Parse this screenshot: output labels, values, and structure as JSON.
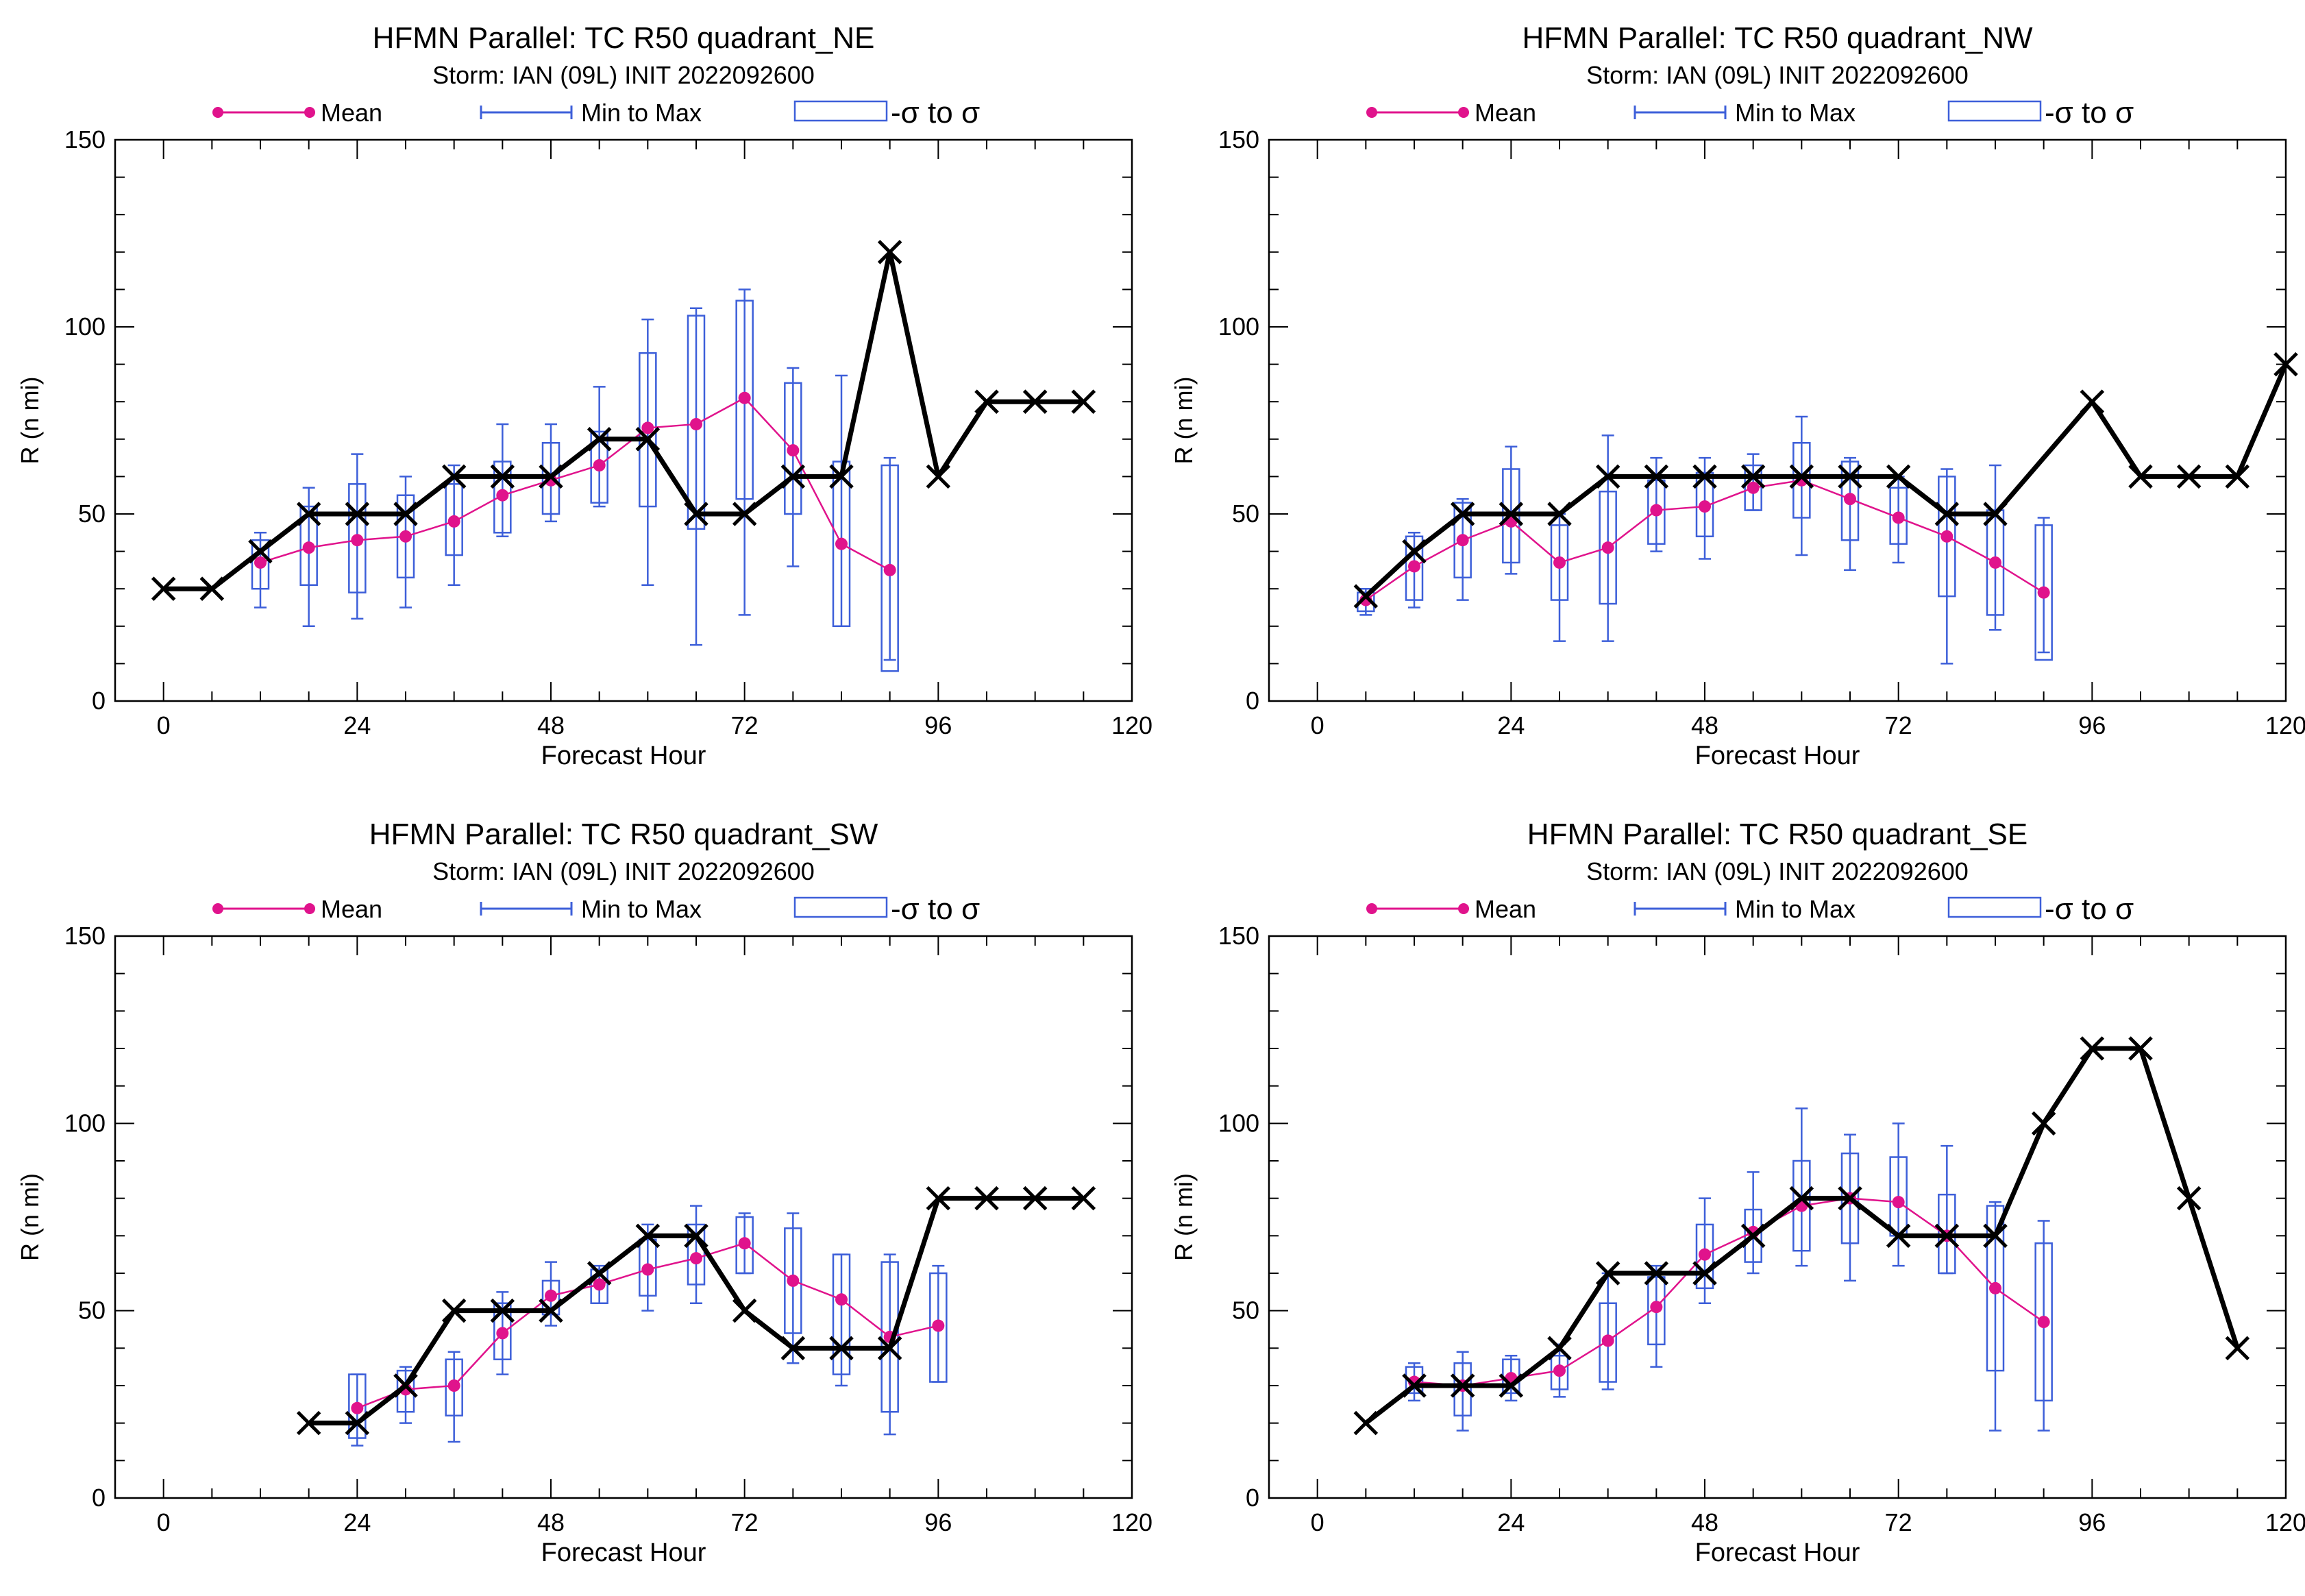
{
  "legend": {
    "mean": "Mean",
    "minmax": "Min to Max",
    "sigma": "-σ to σ"
  },
  "colors": {
    "mean": "#e0138c",
    "box": "#3d5fd9",
    "obs": "#000000"
  },
  "chart_data": [
    {
      "type": "line",
      "title": "HFMN Parallel: TC  R50 quadrant_NE",
      "subtitle": "Storm: IAN (09L) INIT 2022092600",
      "xlabel": "Forecast Hour",
      "ylabel": "R (n mi)",
      "xlim": [
        -6,
        120
      ],
      "ylim": [
        0,
        150
      ],
      "xticks": [
        0,
        24,
        48,
        72,
        96,
        120
      ],
      "yticks": [
        0,
        50,
        100,
        150
      ],
      "legend_position": "top",
      "observed": {
        "x": [
          0,
          6,
          12,
          18,
          24,
          30,
          36,
          42,
          48,
          54,
          60,
          66,
          72,
          78,
          84,
          90,
          96,
          102,
          108,
          114
        ],
        "y": [
          30,
          30,
          40,
          50,
          50,
          50,
          60,
          60,
          60,
          70,
          70,
          50,
          50,
          60,
          60,
          120,
          60,
          80,
          80,
          80
        ]
      },
      "mean": {
        "x": [
          12,
          18,
          24,
          30,
          36,
          42,
          48,
          54,
          60,
          66,
          72,
          78,
          84,
          90
        ],
        "y": [
          37,
          41,
          43,
          44,
          48,
          55,
          59,
          63,
          73,
          74,
          81,
          67,
          42,
          35
        ]
      },
      "boxes": [
        {
          "x": 12,
          "min": 25,
          "max": 45,
          "lo": 30,
          "hi": 43
        },
        {
          "x": 18,
          "min": 20,
          "max": 57,
          "lo": 31,
          "hi": 52
        },
        {
          "x": 24,
          "min": 22,
          "max": 66,
          "lo": 29,
          "hi": 58
        },
        {
          "x": 30,
          "min": 25,
          "max": 60,
          "lo": 33,
          "hi": 55
        },
        {
          "x": 36,
          "min": 31,
          "max": 63,
          "lo": 39,
          "hi": 58
        },
        {
          "x": 42,
          "min": 44,
          "max": 74,
          "lo": 45,
          "hi": 64
        },
        {
          "x": 48,
          "min": 48,
          "max": 74,
          "lo": 50,
          "hi": 69
        },
        {
          "x": 54,
          "min": 52,
          "max": 84,
          "lo": 53,
          "hi": 72
        },
        {
          "x": 60,
          "min": 31,
          "max": 102,
          "lo": 52,
          "hi": 93
        },
        {
          "x": 66,
          "min": 15,
          "max": 105,
          "lo": 46,
          "hi": 103
        },
        {
          "x": 72,
          "min": 23,
          "max": 110,
          "lo": 54,
          "hi": 107
        },
        {
          "x": 78,
          "min": 36,
          "max": 89,
          "lo": 50,
          "hi": 85
        },
        {
          "x": 84,
          "min": 20,
          "max": 87,
          "lo": 20,
          "hi": 64
        },
        {
          "x": 90,
          "min": 11,
          "max": 65,
          "lo": 8,
          "hi": 63
        }
      ]
    },
    {
      "type": "line",
      "title": "HFMN Parallel: TC  R50 quadrant_NW",
      "subtitle": "Storm: IAN (09L) INIT 2022092600",
      "xlabel": "Forecast Hour",
      "ylabel": "R (n mi)",
      "xlim": [
        -6,
        120
      ],
      "ylim": [
        0,
        150
      ],
      "xticks": [
        0,
        24,
        48,
        72,
        96,
        120
      ],
      "yticks": [
        0,
        50,
        100,
        150
      ],
      "legend_position": "top",
      "observed": {
        "x": [
          6,
          12,
          18,
          24,
          30,
          36,
          42,
          48,
          54,
          60,
          66,
          72,
          78,
          84,
          96,
          102,
          108,
          114,
          120
        ],
        "y": [
          28,
          40,
          50,
          50,
          50,
          60,
          60,
          60,
          60,
          60,
          60,
          60,
          50,
          50,
          80,
          60,
          60,
          60,
          90
        ]
      },
      "mean": {
        "x": [
          6,
          12,
          18,
          24,
          30,
          36,
          42,
          48,
          54,
          60,
          66,
          72,
          78,
          84,
          90
        ],
        "y": [
          27,
          36,
          43,
          48,
          37,
          41,
          51,
          52,
          57,
          59,
          54,
          49,
          44,
          37,
          29
        ]
      },
      "boxes": [
        {
          "x": 6,
          "min": 23,
          "max": 30,
          "lo": 24,
          "hi": 29
        },
        {
          "x": 12,
          "min": 25,
          "max": 45,
          "lo": 27,
          "hi": 44
        },
        {
          "x": 18,
          "min": 27,
          "max": 54,
          "lo": 33,
          "hi": 53
        },
        {
          "x": 24,
          "min": 34,
          "max": 68,
          "lo": 37,
          "hi": 62
        },
        {
          "x": 30,
          "min": 16,
          "max": 50,
          "lo": 27,
          "hi": 47
        },
        {
          "x": 36,
          "min": 16,
          "max": 71,
          "lo": 26,
          "hi": 56
        },
        {
          "x": 42,
          "min": 40,
          "max": 65,
          "lo": 42,
          "hi": 59
        },
        {
          "x": 48,
          "min": 38,
          "max": 65,
          "lo": 44,
          "hi": 61
        },
        {
          "x": 54,
          "min": 51,
          "max": 66,
          "lo": 51,
          "hi": 63
        },
        {
          "x": 60,
          "min": 39,
          "max": 76,
          "lo": 49,
          "hi": 69
        },
        {
          "x": 66,
          "min": 35,
          "max": 65,
          "lo": 43,
          "hi": 64
        },
        {
          "x": 72,
          "min": 37,
          "max": 60,
          "lo": 42,
          "hi": 57
        },
        {
          "x": 78,
          "min": 10,
          "max": 62,
          "lo": 28,
          "hi": 60
        },
        {
          "x": 84,
          "min": 19,
          "max": 63,
          "lo": 23,
          "hi": 51
        },
        {
          "x": 90,
          "min": 13,
          "max": 49,
          "lo": 11,
          "hi": 47
        }
      ]
    },
    {
      "type": "line",
      "title": "HFMN Parallel: TC  R50 quadrant_SW",
      "subtitle": "Storm: IAN (09L) INIT 2022092600",
      "xlabel": "Forecast Hour",
      "ylabel": "R (n mi)",
      "xlim": [
        -6,
        120
      ],
      "ylim": [
        0,
        150
      ],
      "xticks": [
        0,
        24,
        48,
        72,
        96,
        120
      ],
      "yticks": [
        0,
        50,
        100,
        150
      ],
      "legend_position": "top",
      "observed": {
        "x": [
          18,
          24,
          30,
          36,
          42,
          48,
          54,
          60,
          66,
          72,
          78,
          84,
          90,
          96,
          102,
          108,
          114
        ],
        "y": [
          20,
          20,
          30,
          50,
          50,
          50,
          60,
          70,
          70,
          50,
          40,
          40,
          40,
          80,
          80,
          80,
          80
        ]
      },
      "mean": {
        "x": [
          24,
          30,
          36,
          42,
          48,
          54,
          60,
          66,
          72,
          78,
          84,
          90,
          96
        ],
        "y": [
          24,
          29,
          30,
          44,
          54,
          57,
          61,
          64,
          68,
          58,
          53,
          43,
          46
        ]
      },
      "boxes": [
        {
          "x": 24,
          "min": 14,
          "max": 33,
          "lo": 16,
          "hi": 33
        },
        {
          "x": 30,
          "min": 20,
          "max": 35,
          "lo": 23,
          "hi": 34
        },
        {
          "x": 36,
          "min": 15,
          "max": 39,
          "lo": 22,
          "hi": 37
        },
        {
          "x": 42,
          "min": 33,
          "max": 55,
          "lo": 37,
          "hi": 52
        },
        {
          "x": 48,
          "min": 46,
          "max": 63,
          "lo": 49,
          "hi": 58
        },
        {
          "x": 54,
          "min": 52,
          "max": 62,
          "lo": 52,
          "hi": 61
        },
        {
          "x": 60,
          "min": 50,
          "max": 73,
          "lo": 54,
          "hi": 69
        },
        {
          "x": 66,
          "min": 52,
          "max": 78,
          "lo": 57,
          "hi": 73
        },
        {
          "x": 72,
          "min": 60,
          "max": 76,
          "lo": 60,
          "hi": 75
        },
        {
          "x": 78,
          "min": 36,
          "max": 76,
          "lo": 44,
          "hi": 72
        },
        {
          "x": 84,
          "min": 30,
          "max": 65,
          "lo": 33,
          "hi": 65
        },
        {
          "x": 90,
          "min": 17,
          "max": 65,
          "lo": 23,
          "hi": 63
        },
        {
          "x": 96,
          "min": 31,
          "max": 62,
          "lo": 31,
          "hi": 60
        }
      ]
    },
    {
      "type": "line",
      "title": "HFMN Parallel: TC  R50 quadrant_SE",
      "subtitle": "Storm: IAN (09L) INIT 2022092600",
      "xlabel": "Forecast Hour",
      "ylabel": "R (n mi)",
      "xlim": [
        -6,
        120
      ],
      "ylim": [
        0,
        150
      ],
      "xticks": [
        0,
        24,
        48,
        72,
        96,
        120
      ],
      "yticks": [
        0,
        50,
        100,
        150
      ],
      "legend_position": "top",
      "observed": {
        "x": [
          6,
          12,
          18,
          24,
          30,
          36,
          42,
          48,
          54,
          60,
          66,
          72,
          78,
          84,
          90,
          96,
          102,
          108,
          114
        ],
        "y": [
          20,
          30,
          30,
          30,
          40,
          60,
          60,
          60,
          70,
          80,
          80,
          70,
          70,
          70,
          100,
          120,
          120,
          80,
          40
        ]
      },
      "mean": {
        "x": [
          12,
          18,
          24,
          30,
          36,
          42,
          48,
          54,
          60,
          66,
          72,
          78,
          84,
          90
        ],
        "y": [
          31,
          30,
          32,
          34,
          42,
          51,
          65,
          71,
          78,
          80,
          79,
          70,
          56,
          47
        ]
      },
      "boxes": [
        {
          "x": 12,
          "min": 26,
          "max": 36,
          "lo": 28,
          "hi": 35
        },
        {
          "x": 18,
          "min": 18,
          "max": 39,
          "lo": 22,
          "hi": 36
        },
        {
          "x": 24,
          "min": 26,
          "max": 38,
          "lo": 28,
          "hi": 37
        },
        {
          "x": 30,
          "min": 27,
          "max": 41,
          "lo": 29,
          "hi": 38
        },
        {
          "x": 36,
          "min": 29,
          "max": 60,
          "lo": 31,
          "hi": 52
        },
        {
          "x": 42,
          "min": 35,
          "max": 62,
          "lo": 41,
          "hi": 59
        },
        {
          "x": 48,
          "min": 52,
          "max": 80,
          "lo": 56,
          "hi": 73
        },
        {
          "x": 54,
          "min": 60,
          "max": 87,
          "lo": 63,
          "hi": 77
        },
        {
          "x": 60,
          "min": 62,
          "max": 104,
          "lo": 66,
          "hi": 90
        },
        {
          "x": 66,
          "min": 58,
          "max": 97,
          "lo": 68,
          "hi": 92
        },
        {
          "x": 72,
          "min": 62,
          "max": 100,
          "lo": 70,
          "hi": 91
        },
        {
          "x": 78,
          "min": 60,
          "max": 94,
          "lo": 60,
          "hi": 81
        },
        {
          "x": 84,
          "min": 18,
          "max": 79,
          "lo": 34,
          "hi": 78
        },
        {
          "x": 90,
          "min": 18,
          "max": 74,
          "lo": 26,
          "hi": 68
        }
      ]
    }
  ]
}
